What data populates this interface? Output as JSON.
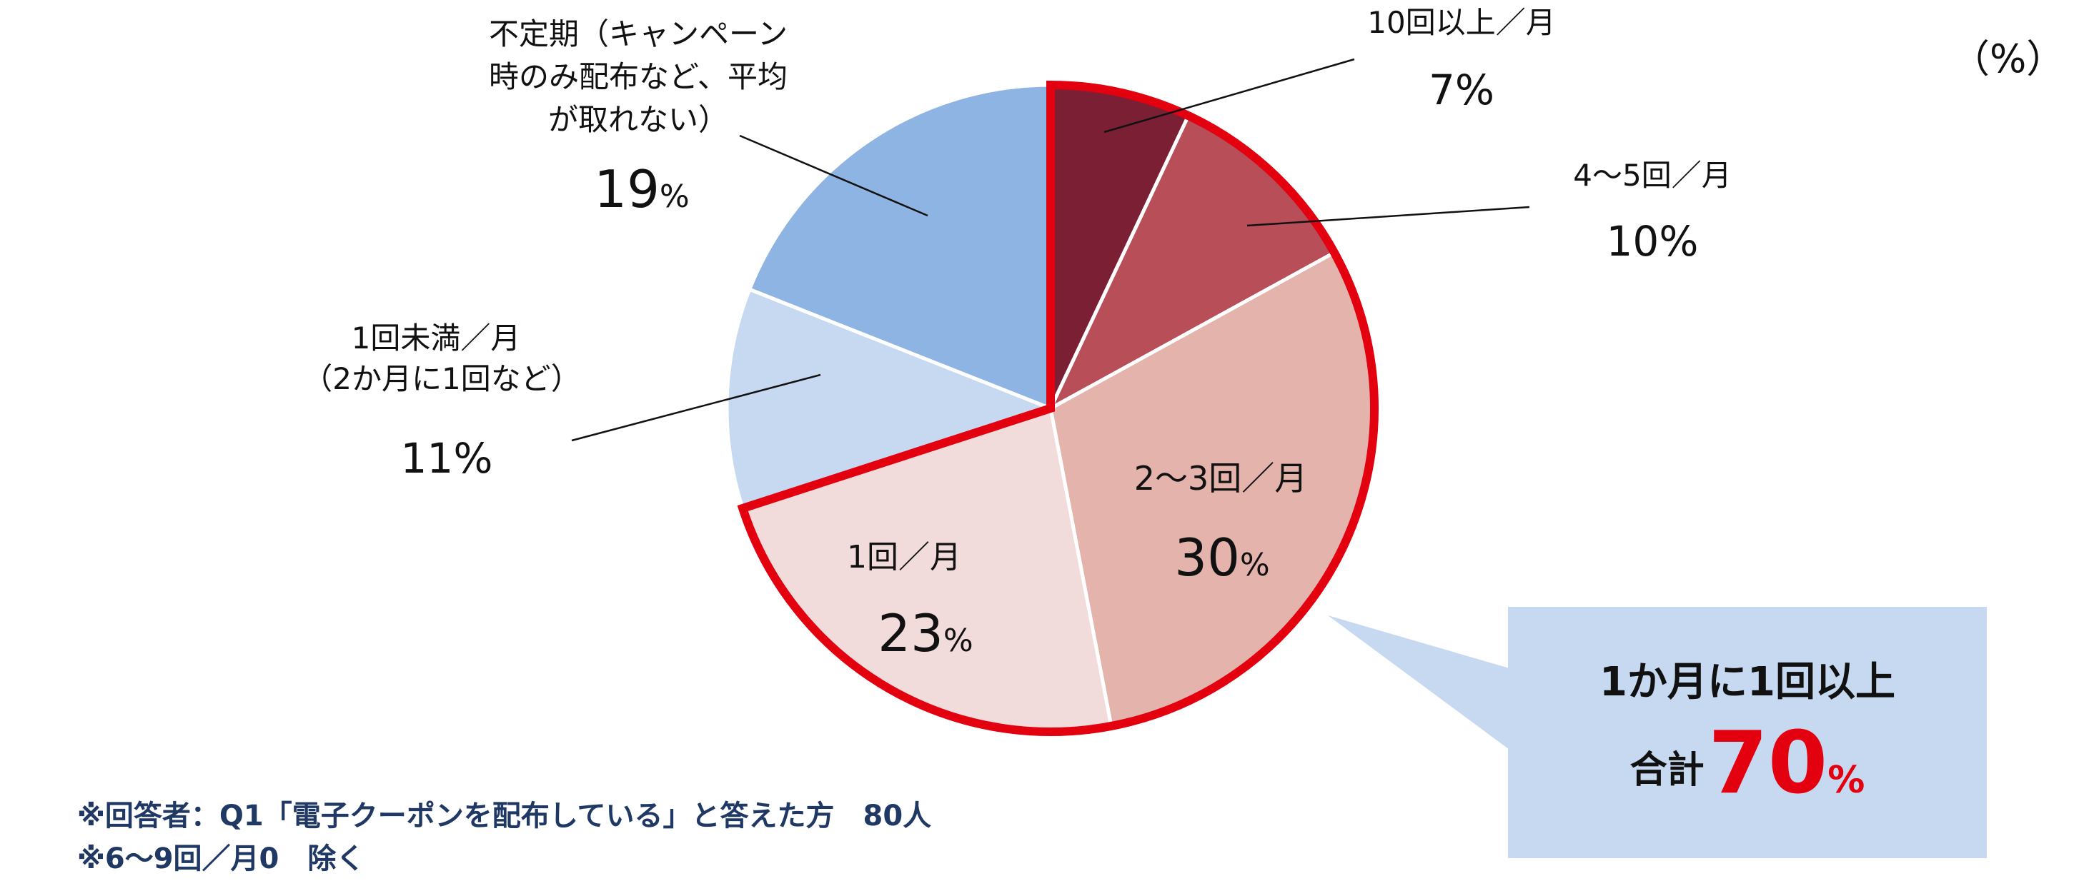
{
  "unit_label": "（%）",
  "chart_data": {
    "type": "pie",
    "start_angle_deg": 0,
    "direction": "clockwise",
    "slices": [
      {
        "label": "10回以上／月",
        "value": 7,
        "color": "#7b1f35"
      },
      {
        "label": "4～5回／月",
        "value": 10,
        "color": "#b84e58"
      },
      {
        "label": "2～3回／月",
        "value": 30,
        "color": "#e3b3ac"
      },
      {
        "label": "1回／月",
        "value": 23,
        "color": "#f2dcdb"
      },
      {
        "label": "1回未満／月（2か月に1回など）",
        "value": 11,
        "color": "#c6d9f1"
      },
      {
        "label": "不定期（キャンペーン時のみ配布など、平均が取れない）",
        "value": 19,
        "color": "#8eb4e3"
      }
    ],
    "highlight": {
      "slices": [
        0,
        1,
        2,
        3
      ],
      "color": "#e3000f"
    }
  },
  "labels": {
    "s0_l1": "10回以上／月",
    "s0_pct": "7%",
    "s1_l1": "4～5回／月",
    "s1_pct": "10%",
    "s2_l1": "2～3回／月",
    "s2_num": "30",
    "s3_l1": "1回／月",
    "s3_num": "23",
    "s4_l1": "1回未満／月",
    "s4_l2": "（2か月に1回など）",
    "s4_pct": "11%",
    "s5_l1": "不定期（キャンペーン",
    "s5_l2": "時のみ配布など、平均",
    "s5_l3": "が取れない）",
    "s5_num": "19",
    "pct_sign": "%"
  },
  "callout": {
    "line1": "1か月に1回以上",
    "total_label": "合計",
    "total_value": "70",
    "total_unit": "%"
  },
  "notes": {
    "line1": "※回答者：Q1「電子クーポンを配布している」と答えた方　80人",
    "line2": "※6～9回／月0　除く"
  }
}
